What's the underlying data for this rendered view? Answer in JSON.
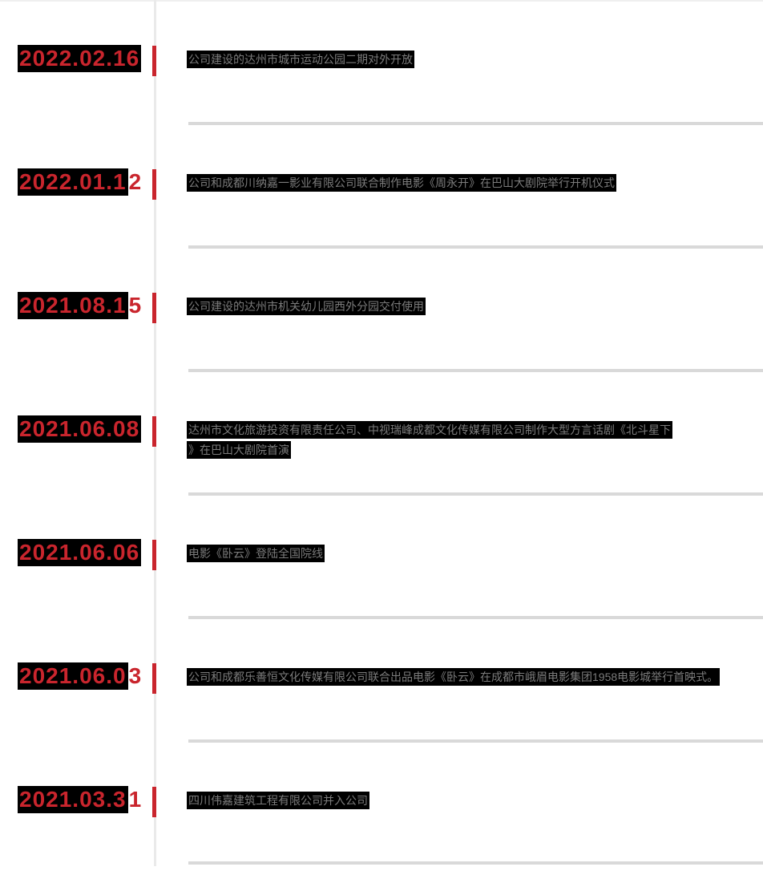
{
  "page": {
    "background": "#ffffff",
    "accent_red": "#c9252d",
    "separator_color": "#d9d9d9",
    "axis_line_color": "#eaeaea",
    "highlight_bg": "#000000",
    "body_text_color": "#7b7b7b"
  },
  "timeline": {
    "items": [
      {
        "date_highlighted": "2022.02.16",
        "date_tail": "",
        "lines": [
          "公司建设的达州市城市运动公园二期对外开放"
        ]
      },
      {
        "date_highlighted": "2022.01.1",
        "date_tail": "2",
        "lines": [
          "公司和成都川纳嘉一影业有限公司联合制作电影《周永开》在巴山大剧院举行开机仪式"
        ]
      },
      {
        "date_highlighted": "2021.08.1",
        "date_tail": "5",
        "lines": [
          "公司建设的达州市机关幼儿园西外分园交付使用"
        ]
      },
      {
        "date_highlighted": "2021.06.08",
        "date_tail": "",
        "lines": [
          "达州市文化旅游投资有限责任公司、中视瑞峰成都文化传媒有限公司制作大型方言话剧《北斗星下",
          "》在巴山大剧院首演"
        ]
      },
      {
        "date_highlighted": "2021.06.06",
        "date_tail": "",
        "lines": [
          "电影《卧云》登陆全国院线"
        ]
      },
      {
        "date_highlighted": "2021.06.0",
        "date_tail": "3",
        "lines": [
          "公司和成都乐善恒文化传媒有限公司联合出品电影《卧云》在成都市峨眉电影集团1958电影城举行首映式。"
        ]
      },
      {
        "date_highlighted": "2021.03.3",
        "date_tail": "1",
        "lines": [
          "四川伟嘉建筑工程有限公司并入公司"
        ]
      }
    ]
  }
}
